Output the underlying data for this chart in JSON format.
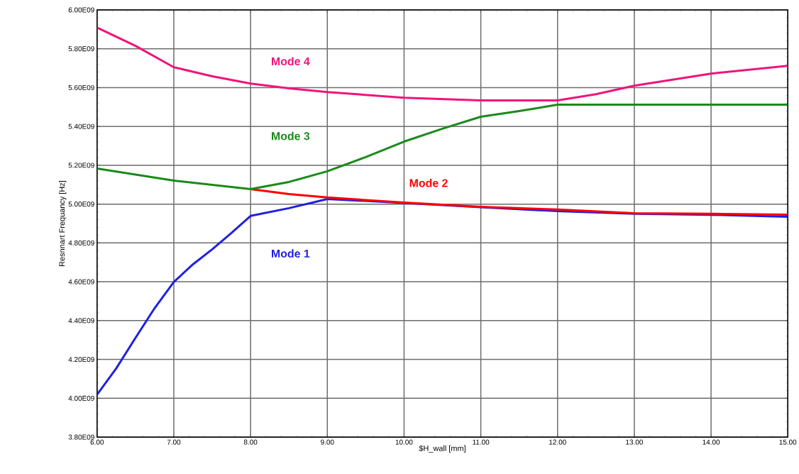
{
  "chart_data": {
    "type": "line",
    "xlabel": "$H_wall [mm]",
    "ylabel": "Resnnart Frequancy [Hz]",
    "xlim": [
      6,
      15
    ],
    "ylim": [
      3800000000,
      6000000000
    ],
    "xticks": [
      {
        "value": 6,
        "label": "6.00"
      },
      {
        "value": 7,
        "label": "7.00"
      },
      {
        "value": 8,
        "label": "8.00"
      },
      {
        "value": 9,
        "label": "9.00"
      },
      {
        "value": 10,
        "label": "10.00"
      },
      {
        "value": 11,
        "label": "11.00"
      },
      {
        "value": 12,
        "label": "12.00"
      },
      {
        "value": 13,
        "label": "13.00"
      },
      {
        "value": 14,
        "label": "14.00"
      },
      {
        "value": 15,
        "label": "15.00"
      }
    ],
    "yticks": [
      {
        "value": 3800000000,
        "label": "3.80E09"
      },
      {
        "value": 4000000000,
        "label": "4.00E09"
      },
      {
        "value": 4200000000,
        "label": "4.20E09"
      },
      {
        "value": 4400000000,
        "label": "4.40E09"
      },
      {
        "value": 4600000000,
        "label": "4.60E09"
      },
      {
        "value": 4800000000,
        "label": "4.80E09"
      },
      {
        "value": 5000000000,
        "label": "5.00E09"
      },
      {
        "value": 5200000000,
        "label": "5.20E09"
      },
      {
        "value": 5400000000,
        "label": "5.40E09"
      },
      {
        "value": 5600000000,
        "label": "5.60E09"
      },
      {
        "value": 5800000000,
        "label": "5.80E09"
      },
      {
        "value": 6000000000,
        "label": "6.00E09"
      }
    ],
    "grid": true,
    "marker": "none",
    "line_style": "solid",
    "series": [
      {
        "name": "Mode 1",
        "color": "#2020e0",
        "x": [
          6,
          6.25,
          6.5,
          6.75,
          7,
          7.25,
          7.5,
          7.75,
          8,
          8.5,
          9,
          10,
          11,
          12,
          13,
          14,
          15
        ],
        "values": [
          4019000000,
          4154000000,
          4311000000,
          4464000000,
          4599000000,
          4690000000,
          4767000000,
          4851000000,
          4939000000,
          4979000000,
          5026000000,
          5006000000,
          4984000000,
          4964000000,
          4950000000,
          4945000000,
          4935000000
        ]
      },
      {
        "name": "Mode 2",
        "color": "#ff0000",
        "x": [
          8,
          8.5,
          9,
          10,
          11,
          12,
          13,
          14,
          15
        ],
        "values": [
          5077000000,
          5052000000,
          5034000000,
          5008000000,
          4986000000,
          4972000000,
          4953000000,
          4950000000,
          4946000000
        ]
      },
      {
        "name": "Mode 3",
        "color": "#1a8a1a",
        "x": [
          6,
          7,
          8,
          8.5,
          9,
          9.5,
          10,
          10.5,
          11,
          11.5,
          12,
          13,
          14,
          15
        ],
        "values": [
          5183000000,
          5121000000,
          5077000000,
          5114000000,
          5169000000,
          5242000000,
          5322000000,
          5388000000,
          5450000000,
          5479000000,
          5512000000,
          5512000000,
          5512000000,
          5512000000
        ]
      },
      {
        "name": "Mode 4",
        "color": "#f0147a",
        "x": [
          6,
          6.5,
          7,
          7.5,
          8,
          8.5,
          9,
          10,
          11,
          12,
          12.5,
          13,
          14,
          15
        ],
        "values": [
          5909000000,
          5815000000,
          5705000000,
          5658000000,
          5621000000,
          5596000000,
          5577000000,
          5548000000,
          5534000000,
          5534000000,
          5566000000,
          5610000000,
          5672000000,
          5712000000
        ]
      }
    ]
  }
}
